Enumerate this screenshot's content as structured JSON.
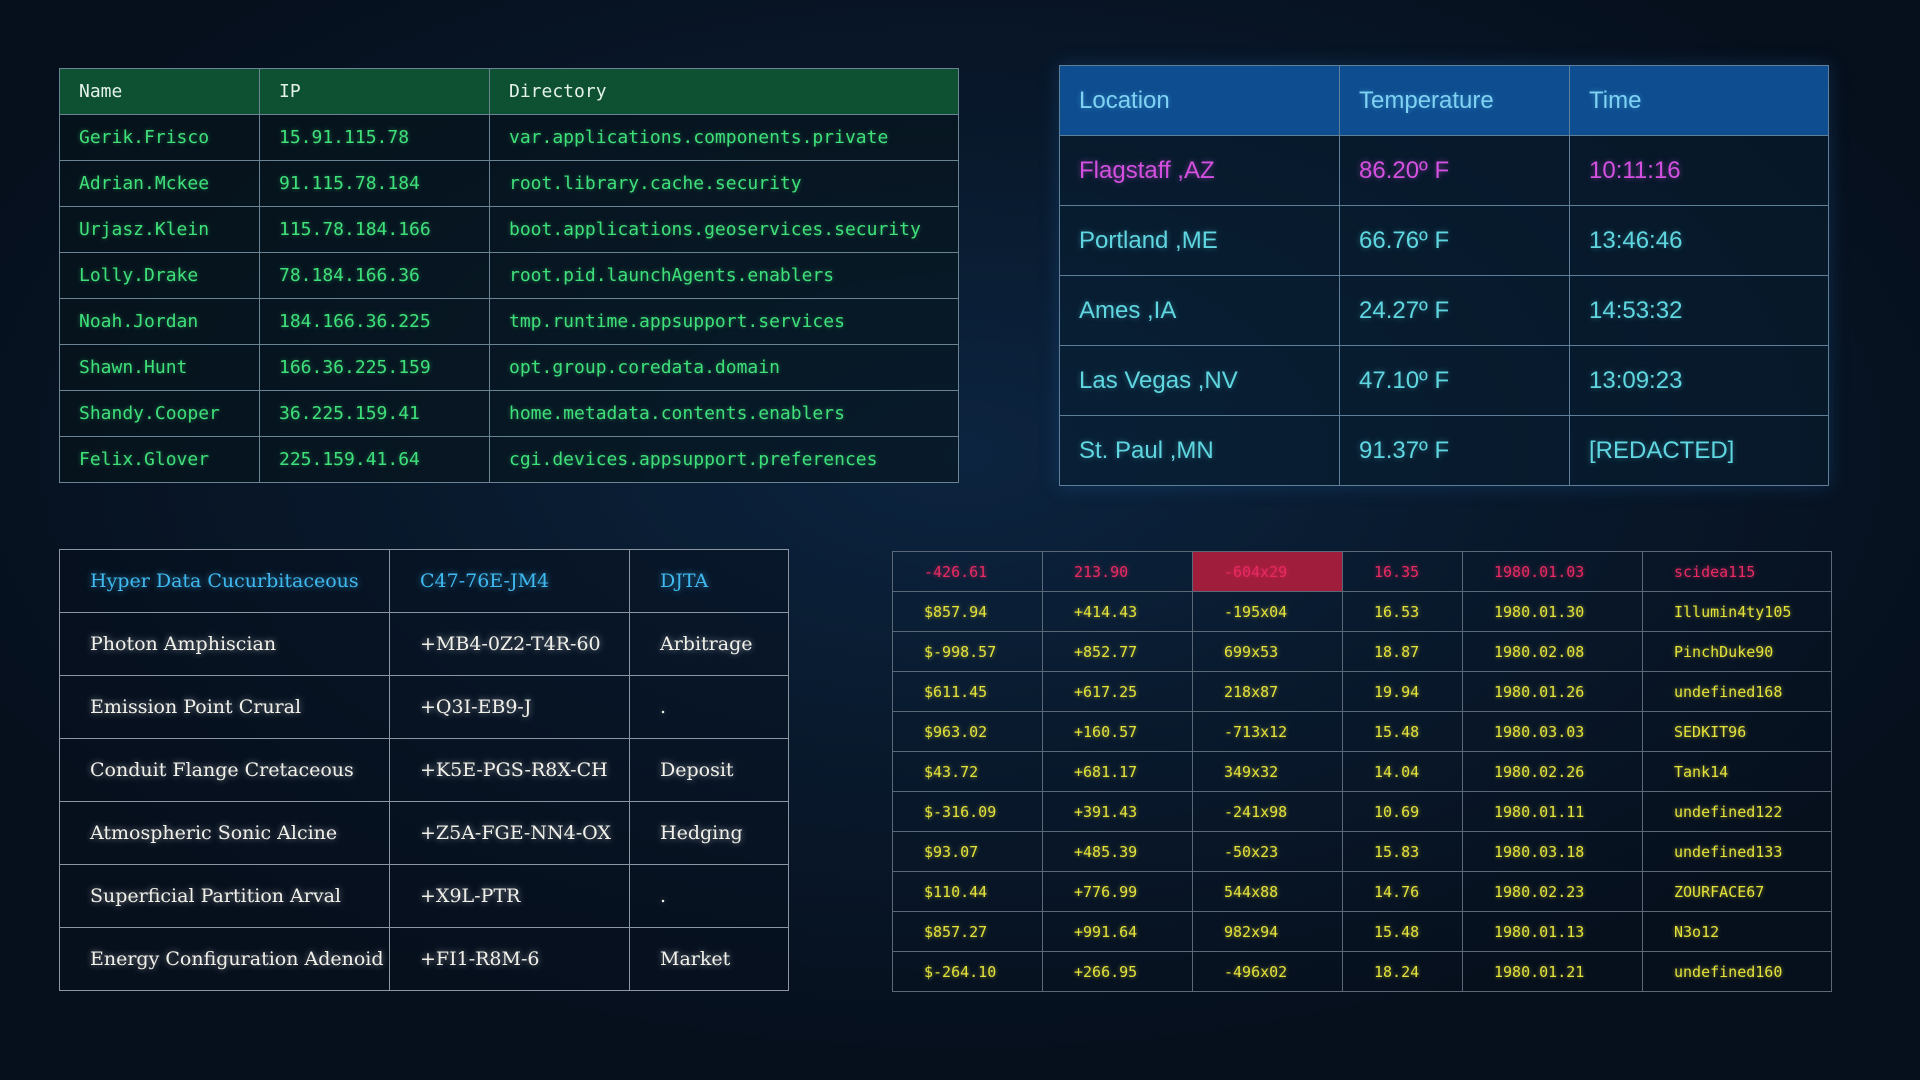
{
  "users_table": {
    "headers": [
      "Name",
      "IP",
      "Directory"
    ],
    "rows": [
      [
        "Gerik.Frisco",
        "15.91.115.78",
        "var.applications.components.private"
      ],
      [
        "Adrian.Mckee",
        "91.115.78.184",
        "root.library.cache.security"
      ],
      [
        "Urjasz.Klein",
        "115.78.184.166",
        "boot.applications.geoservices.security"
      ],
      [
        "Lolly.Drake",
        "78.184.166.36",
        "root.pid.launchAgents.enablers"
      ],
      [
        "Noah.Jordan",
        "184.166.36.225",
        "tmp.runtime.appsupport.services"
      ],
      [
        "Shawn.Hunt",
        "166.36.225.159",
        "opt.group.coredata.domain"
      ],
      [
        "Shandy.Cooper",
        "36.225.159.41",
        "home.metadata.contents.enablers"
      ],
      [
        "Felix.Glover",
        "225.159.41.64",
        "cgi.devices.appsupport.preferences"
      ]
    ]
  },
  "weather_table": {
    "headers": [
      "Location",
      "Temperature",
      "Time"
    ],
    "highlight_color": "#d350e0",
    "rows": [
      [
        "Flagstaff ,AZ",
        "86.20º F",
        "10:11:16"
      ],
      [
        "Portland ,ME",
        "66.76º F",
        "13:46:46"
      ],
      [
        "Ames ,IA",
        "24.27º F",
        "14:53:32"
      ],
      [
        "Las Vegas ,NV",
        "47.10º F",
        "13:09:23"
      ],
      [
        "St. Paul ,MN",
        "91.37º F",
        "[REDACTED]"
      ]
    ]
  },
  "serif_table": {
    "rows": [
      [
        "Hyper Data Cucurbitaceous",
        "C47-76E-JM4",
        "DJTA"
      ],
      [
        "Photon Amphiscian",
        "+MB4-0Z2-T4R-60",
        "Arbitrage"
      ],
      [
        "Emission Point Crural",
        "+Q3I-EB9-J",
        "."
      ],
      [
        "Conduit Flange Cretaceous",
        "+K5E-PGS-R8X-CH",
        "Deposit"
      ],
      [
        "Atmospheric Sonic Alcine",
        "+Z5A-FGE-NN4-OX",
        "Hedging"
      ],
      [
        "Superficial Partition Arval",
        "+X9L-PTR",
        "."
      ],
      [
        "Energy Configuration Adenoid",
        "+FI1-R8M-6",
        "Market"
      ]
    ]
  },
  "ledger_table": {
    "accent_color": "#e4e23a",
    "alert_color": "#e82a62",
    "rows": [
      [
        "-426.61",
        "213.90",
        "-604x29",
        "16.35",
        "1980.01.03",
        "scidea115"
      ],
      [
        "$857.94",
        "+414.43",
        "-195x04",
        "16.53",
        "1980.01.30",
        "Illumin4ty105"
      ],
      [
        "$-998.57",
        "+852.77",
        "699x53",
        "18.87",
        "1980.02.08",
        "PinchDuke90"
      ],
      [
        "$611.45",
        "+617.25",
        "218x87",
        "19.94",
        "1980.01.26",
        "undefined168"
      ],
      [
        "$963.02",
        "+160.57",
        "-713x12",
        "15.48",
        "1980.03.03",
        "SEDKIT96"
      ],
      [
        "$43.72",
        "+681.17",
        "349x32",
        "14.04",
        "1980.02.26",
        "Tank14"
      ],
      [
        "$-316.09",
        "+391.43",
        "-241x98",
        "10.69",
        "1980.01.11",
        "undefined122"
      ],
      [
        "$93.07",
        "+485.39",
        "-50x23",
        "15.83",
        "1980.03.18",
        "undefined133"
      ],
      [
        "$110.44",
        "+776.99",
        "544x88",
        "14.76",
        "1980.02.23",
        "ZOURFACE67"
      ],
      [
        "$857.27",
        "+991.64",
        "982x94",
        "15.48",
        "1980.01.13",
        "N3o12"
      ],
      [
        "$-264.10",
        "+266.95",
        "-496x02",
        "18.24",
        "1980.01.21",
        "undefined160"
      ]
    ]
  }
}
